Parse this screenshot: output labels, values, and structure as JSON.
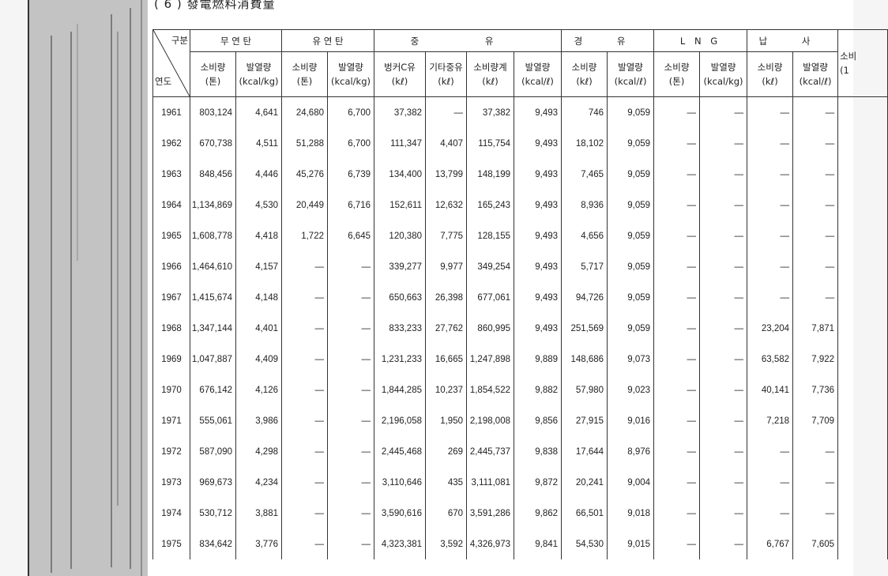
{
  "title": "( 6 )  發電燃料消費量",
  "header": {
    "corner_top": "구분",
    "corner_bottom": "연도",
    "groups": [
      "무 연 탄",
      "유 연 탄",
      "중 유",
      "경 유",
      "L N G",
      "납 사"
    ],
    "last_partial": [
      "소비",
      "(1"
    ],
    "sub": [
      [
        "소비량",
        "(톤)"
      ],
      [
        "발열량",
        "(kcal/kg)"
      ],
      [
        "소비량",
        "(톤)"
      ],
      [
        "발열량",
        "(kcal/kg)"
      ],
      [
        "벙커C유",
        "(kℓ)"
      ],
      [
        "기타중유",
        "(kℓ)"
      ],
      [
        "소비량계",
        "(kℓ)"
      ],
      [
        "발열량",
        "(kcal/ℓ)"
      ],
      [
        "소비량",
        "(kℓ)"
      ],
      [
        "발열량",
        "(kcal/ℓ)"
      ],
      [
        "소비량",
        "(톤)"
      ],
      [
        "발열량",
        "(kcal/kg)"
      ],
      [
        "소비량",
        "(kℓ)"
      ],
      [
        "발열량",
        "(kcal/ℓ)"
      ]
    ]
  },
  "rows": [
    [
      "1961",
      "803,124",
      "4,641",
      "24,680",
      "6,700",
      "37,382",
      "—",
      "37,382",
      "9,493",
      "746",
      "9,059",
      "—",
      "—",
      "—",
      "—"
    ],
    [
      "1962",
      "670,738",
      "4,511",
      "51,288",
      "6,700",
      "111,347",
      "4,407",
      "115,754",
      "9,493",
      "18,102",
      "9,059",
      "—",
      "—",
      "—",
      "—"
    ],
    [
      "1963",
      "848,456",
      "4,446",
      "45,276",
      "6,739",
      "134,400",
      "13,799",
      "148,199",
      "9,493",
      "7,465",
      "9,059",
      "—",
      "—",
      "—",
      "—"
    ],
    [
      "1964",
      "1,134,869",
      "4,530",
      "20,449",
      "6,716",
      "152,611",
      "12,632",
      "165,243",
      "9,493",
      "8,936",
      "9,059",
      "—",
      "—",
      "—",
      "—"
    ],
    [
      "1965",
      "1,608,778",
      "4,418",
      "1,722",
      "6,645",
      "120,380",
      "7,775",
      "128,155",
      "9,493",
      "4,656",
      "9,059",
      "—",
      "—",
      "—",
      "—"
    ],
    [
      "1966",
      "1,464,610",
      "4,157",
      "—",
      "—",
      "339,277",
      "9,977",
      "349,254",
      "9,493",
      "5,717",
      "9,059",
      "—",
      "—",
      "—",
      "—"
    ],
    [
      "1967",
      "1,415,674",
      "4,148",
      "—",
      "—",
      "650,663",
      "26,398",
      "677,061",
      "9,493",
      "94,726",
      "9,059",
      "—",
      "—",
      "—",
      "—"
    ],
    [
      "1968",
      "1,347,144",
      "4,401",
      "—",
      "—",
      "833,233",
      "27,762",
      "860,995",
      "9,493",
      "251,569",
      "9,059",
      "—",
      "—",
      "23,204",
      "7,871"
    ],
    [
      "1969",
      "1,047,887",
      "4,409",
      "—",
      "—",
      "1,231,233",
      "16,665",
      "1,247,898",
      "9,889",
      "148,686",
      "9,073",
      "—",
      "—",
      "63,582",
      "7,922"
    ],
    [
      "1970",
      "676,142",
      "4,126",
      "—",
      "—",
      "1,844,285",
      "10,237",
      "1,854,522",
      "9,882",
      "57,980",
      "9,023",
      "—",
      "—",
      "40,141",
      "7,736"
    ],
    [
      "1971",
      "555,061",
      "3,986",
      "—",
      "—",
      "2,196,058",
      "1,950",
      "2,198,008",
      "9,856",
      "27,915",
      "9,016",
      "—",
      "—",
      "7,218",
      "7,709"
    ],
    [
      "1972",
      "587,090",
      "4,298",
      "—",
      "—",
      "2,445,468",
      "269",
      "2,445,737",
      "9,838",
      "17,644",
      "8,976",
      "—",
      "—",
      "—",
      "—"
    ],
    [
      "1973",
      "969,673",
      "4,234",
      "—",
      "—",
      "3,110,646",
      "435",
      "3,111,081",
      "9,872",
      "20,241",
      "9,004",
      "—",
      "—",
      "—",
      "—"
    ],
    [
      "1974",
      "530,712",
      "3,881",
      "—",
      "—",
      "3,590,616",
      "670",
      "3,591,286",
      "9,862",
      "66,501",
      "9,018",
      "—",
      "—",
      "—",
      "—"
    ],
    [
      "1975",
      "834,642",
      "3,776",
      "—",
      "—",
      "4,323,381",
      "3,592",
      "4,326,973",
      "9,841",
      "54,530",
      "9,015",
      "—",
      "—",
      "6,767",
      "7,605"
    ]
  ]
}
